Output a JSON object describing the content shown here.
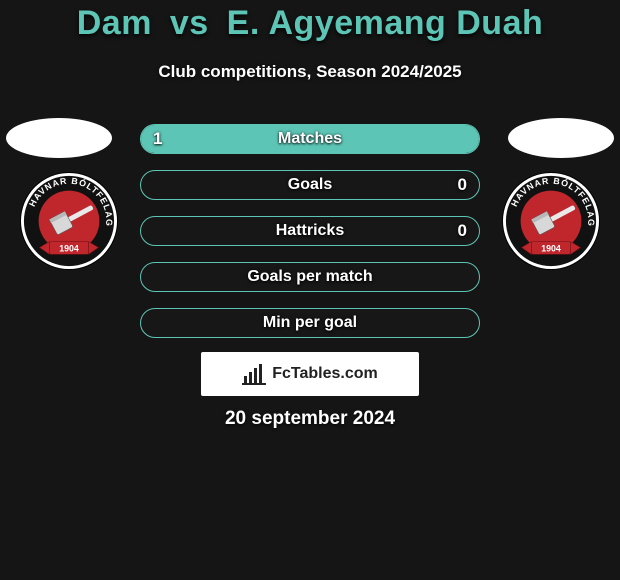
{
  "colors": {
    "background": "#151515",
    "accent": "#5dc5b5",
    "bar_border": "#5dc5b5",
    "bar_empty": "#171717",
    "bar_fill_left": "#5dc5b5",
    "bar_fill_right": "#5dc5b5",
    "text": "#ffffff",
    "text_shadow": "rgba(0,0,0,.85)",
    "club_outer": "#ffffff",
    "club_ring": "#111111",
    "club_center": "#c0272d",
    "club_banner": "#c0272d",
    "attribution_bg": "#ffffff",
    "attribution_text": "#222222"
  },
  "typography": {
    "title_fontsize": 34,
    "subtitle_fontsize": 17,
    "bar_label_fontsize": 16,
    "bar_value_fontsize": 17,
    "attribution_fontsize": 16,
    "date_fontsize": 19
  },
  "title": {
    "left_name": "Dam",
    "vs": "vs",
    "right_name": "E. Agyemang Duah"
  },
  "subtitle": "Club competitions, Season 2024/2025",
  "club": {
    "ring_text": "HAVNAR  BÓLTFELAG",
    "year": "1904"
  },
  "bars": [
    {
      "label": "Matches",
      "left": "1",
      "left_pct": 100,
      "right": "",
      "right_pct": 0
    },
    {
      "label": "Goals",
      "left": "",
      "left_pct": 0,
      "right": "0",
      "right_pct": 0
    },
    {
      "label": "Hattricks",
      "left": "",
      "left_pct": 0,
      "right": "0",
      "right_pct": 0
    },
    {
      "label": "Goals per match",
      "left": "",
      "left_pct": 0,
      "right": "",
      "right_pct": 0
    },
    {
      "label": "Min per goal",
      "left": "",
      "left_pct": 0,
      "right": "",
      "right_pct": 0
    }
  ],
  "attribution": {
    "text": "FcTables.com"
  },
  "date": "20 september 2024"
}
